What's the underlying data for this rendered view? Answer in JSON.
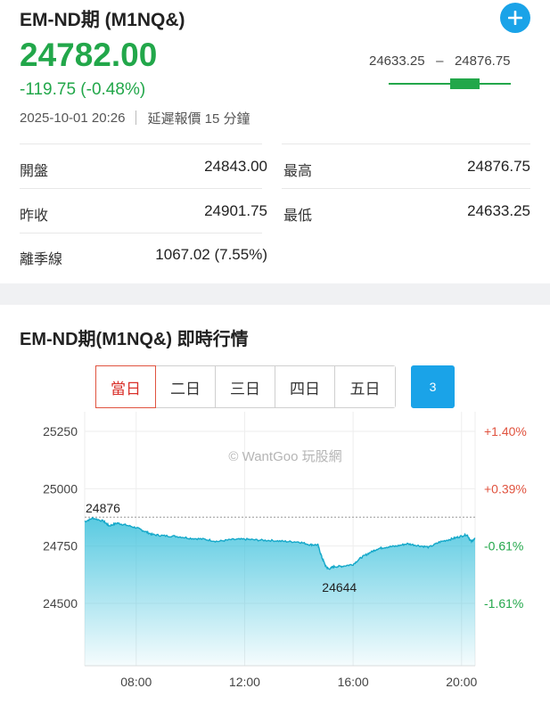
{
  "quote": {
    "title": "EM-ND期 (M1NQ&)",
    "price": "24782.00",
    "change": "-119.75 (-0.48%)",
    "timestamp": "2025-10-01 20:26",
    "delay_note": "延遲報價 15 分鐘",
    "range_low": "24633.25",
    "range_sep": "–",
    "range_high": "24876.75",
    "range_position": 0.6,
    "colors": {
      "down": "#22a74a",
      "up": "#e0533f",
      "accent": "#1aa3e8"
    }
  },
  "stats": [
    {
      "label": "開盤",
      "value": "24843.00"
    },
    {
      "label": "最高",
      "value": "24876.75"
    },
    {
      "label": "昨收",
      "value": "24901.75"
    },
    {
      "label": "最低",
      "value": "24633.25"
    },
    {
      "label": "離季線",
      "value": "1067.02 (7.55%)"
    }
  ],
  "chart_section": {
    "title": "EM-ND期(M1NQ&) 即時行情",
    "tabs": [
      "當日",
      "二日",
      "三日",
      "四日",
      "五日"
    ],
    "active_tab": "當日",
    "extra_button": "3",
    "watermark": "© WantGoo 玩股網"
  },
  "chart_data": {
    "type": "area",
    "x_ticks": [
      "08:00",
      "12:00",
      "16:00",
      "20:00"
    ],
    "y_ticks": [
      "25250",
      "25000",
      "24750",
      "24500"
    ],
    "y_tick_values": [
      25250,
      25000,
      24750,
      24500
    ],
    "right_ticks": [
      "+1.40%",
      "+0.39%",
      "-0.61%",
      "-1.61%"
    ],
    "x_range": [
      6.1,
      20.5
    ],
    "ylim": [
      24300,
      25250
    ],
    "reference_value": 24876,
    "high_label": "24876",
    "low_label": "24644",
    "high_point": [
      6.2,
      24876
    ],
    "low_point": [
      15.1,
      24644
    ],
    "series": [
      {
        "x": [
          6.1,
          6.4,
          6.8,
          7.0,
          7.3,
          7.6,
          8.0,
          8.3,
          8.6,
          9.0,
          9.5,
          10.0,
          10.5,
          11.0,
          11.5,
          12.0,
          12.5,
          13.0,
          13.5,
          14.0,
          14.4,
          14.7,
          14.85,
          15.0,
          15.1,
          15.3,
          15.6,
          16.0,
          16.3,
          16.6,
          16.9,
          17.2,
          17.6,
          18.0,
          18.4,
          18.8,
          19.2,
          19.6,
          19.9,
          20.2,
          20.35,
          20.5
        ],
        "y": [
          24856,
          24872,
          24858,
          24838,
          24850,
          24842,
          24830,
          24815,
          24800,
          24795,
          24792,
          24784,
          24780,
          24770,
          24778,
          24780,
          24776,
          24774,
          24770,
          24768,
          24756,
          24755,
          24700,
          24660,
          24650,
          24660,
          24662,
          24670,
          24700,
          24720,
          24738,
          24745,
          24750,
          24760,
          24752,
          24745,
          24768,
          24780,
          24790,
          24800,
          24770,
          24782
        ]
      }
    ]
  }
}
